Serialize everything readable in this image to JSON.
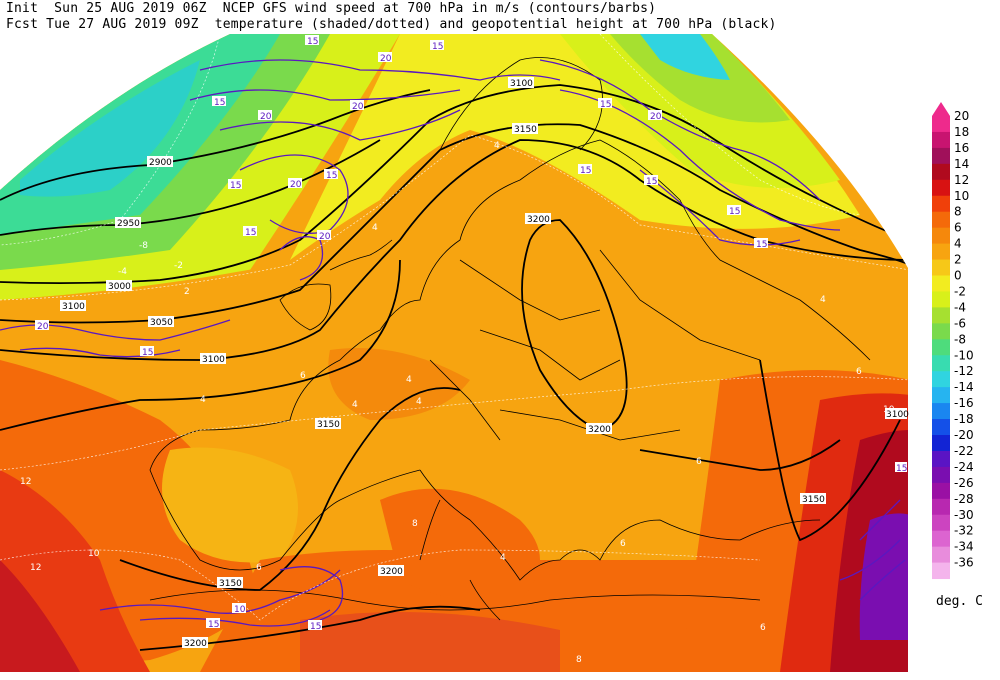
{
  "header": {
    "line1": "Init  Sun 25 AUG 2019 06Z  NCEP GFS wind speed at 700 hPa in m/s (contours/barbs)",
    "line2": "Fcst Tue 27 AUG 2019 09Z  temperature (shaded/dotted) and geopotential height at 700 hPa (black)"
  },
  "colorbar": {
    "unit": "deg. C",
    "levels": [
      "20",
      "18",
      "16",
      "14",
      "12",
      "10",
      "8",
      "6",
      "4",
      "2",
      "0",
      "-2",
      "-4",
      "-6",
      "-8",
      "-10",
      "-12",
      "-14",
      "-16",
      "-18",
      "-20",
      "-22",
      "-24",
      "-26",
      "-28",
      "-30",
      "-32",
      "-34",
      "-36"
    ],
    "colors": [
      "#ee2a8c",
      "#c81470",
      "#a0105a",
      "#b00a1e",
      "#d81212",
      "#f0400a",
      "#f46a0a",
      "#f5880c",
      "#f7a410",
      "#f6c818",
      "#f2ec20",
      "#d8f01a",
      "#a6e030",
      "#7ada4c",
      "#4edc7c",
      "#38dcb0",
      "#30d4e0",
      "#26b4f0",
      "#1a86f0",
      "#1450e8",
      "#1224d4",
      "#5a14c4",
      "#7a0eb0",
      "#9a10a4",
      "#b828b0",
      "#cc44c0",
      "#dc64d0",
      "#e88cdc",
      "#f4b4ec"
    ]
  },
  "height_labels": [
    "2950",
    "2900",
    "3000",
    "3050",
    "3100",
    "3100",
    "3150",
    "3200",
    "3200",
    "3150",
    "3200",
    "3150",
    "3150",
    "3200",
    "3100",
    "3100"
  ],
  "speed_labels": [
    "15",
    "20",
    "20",
    "15",
    "15",
    "20",
    "15",
    "15",
    "20",
    "20",
    "15",
    "15",
    "15",
    "15",
    "20",
    "20",
    "15",
    "10",
    "15",
    "15",
    "15",
    "15",
    "15"
  ],
  "temp_labels": [
    "-4",
    "-8",
    "-2",
    "4",
    "4",
    "2",
    "4",
    "4",
    "4",
    "6",
    "4",
    "6",
    "6",
    "8",
    "4",
    "6",
    "6",
    "12",
    "12",
    "8",
    "6",
    "10",
    "10",
    "4"
  ]
}
